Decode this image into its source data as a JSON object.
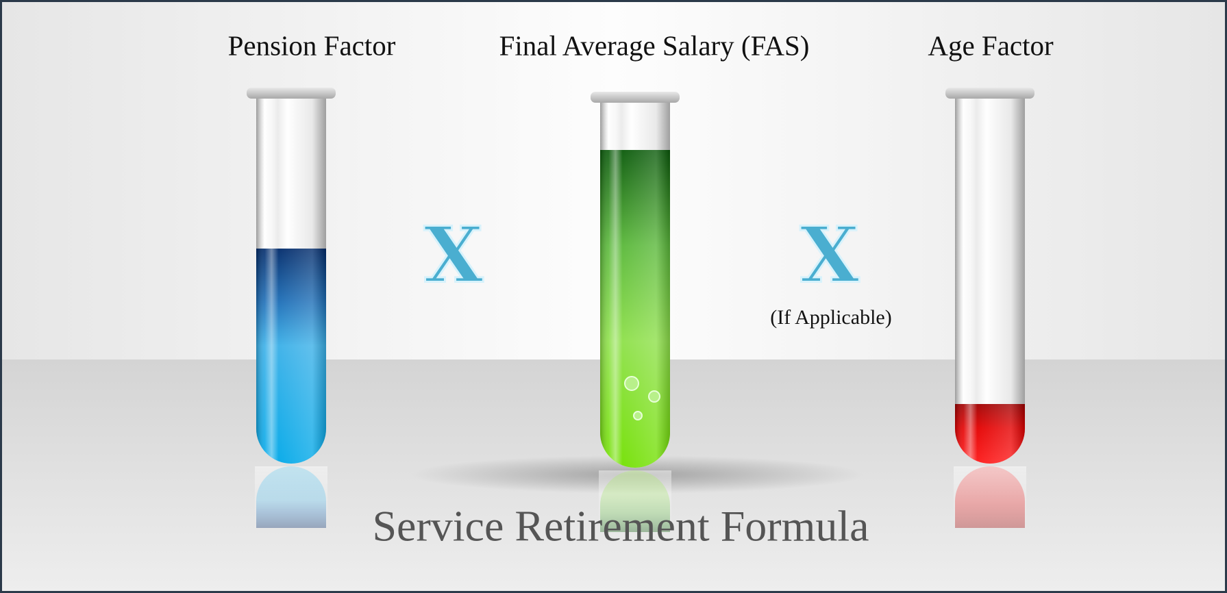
{
  "title": "Service Retirement Formula",
  "tubes": [
    {
      "label": "Pension Factor"
    },
    {
      "label": "Final Average Salary (FAS)"
    },
    {
      "label": "Age Factor"
    }
  ],
  "operators": [
    {
      "symbol": "X"
    },
    {
      "symbol": "X",
      "note": "(If Applicable)"
    }
  ]
}
